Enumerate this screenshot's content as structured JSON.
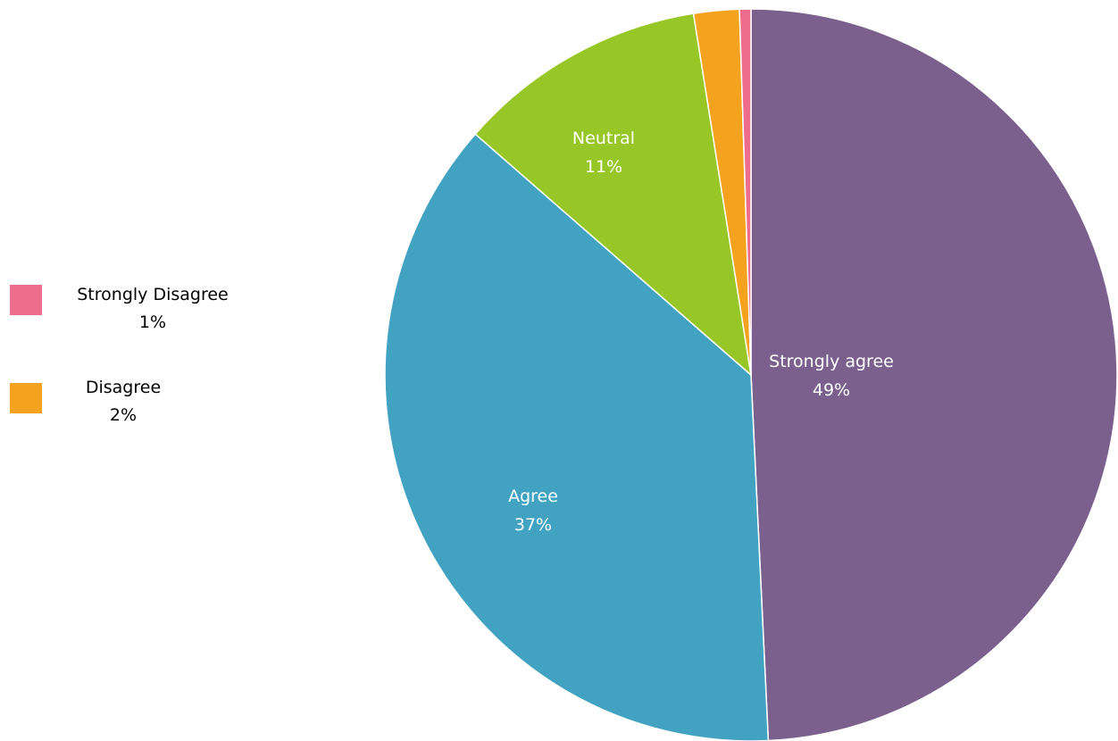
{
  "chart_data": {
    "type": "pie",
    "title": "",
    "series": [
      {
        "name": "",
        "slices": [
          {
            "label": "Strongly agree",
            "value": 49,
            "display": "49%",
            "color": "#7B608E"
          },
          {
            "label": "Agree",
            "value": 37,
            "display": "37%",
            "color": "#41A3C1"
          },
          {
            "label": "Neutral",
            "value": 11,
            "display": "11%",
            "color": "#97C627"
          },
          {
            "label": "Disagree",
            "value": 2,
            "display": "2%",
            "color": "#F5A31E"
          },
          {
            "label": "Strongly Disagree",
            "value": 0.5,
            "display": "1%",
            "color": "#EF6D8C"
          }
        ]
      }
    ],
    "start_angle_deg": 0,
    "direction": "clockwise",
    "labels_inside": [
      "Strongly agree",
      "Agree",
      "Neutral"
    ],
    "legend": {
      "placement": "left",
      "items": [
        {
          "label": "Strongly Disagree",
          "display": "1%",
          "color": "#EF6D8C"
        },
        {
          "label": "Disagree",
          "display": "2%",
          "color": "#F5A31E"
        }
      ]
    }
  }
}
